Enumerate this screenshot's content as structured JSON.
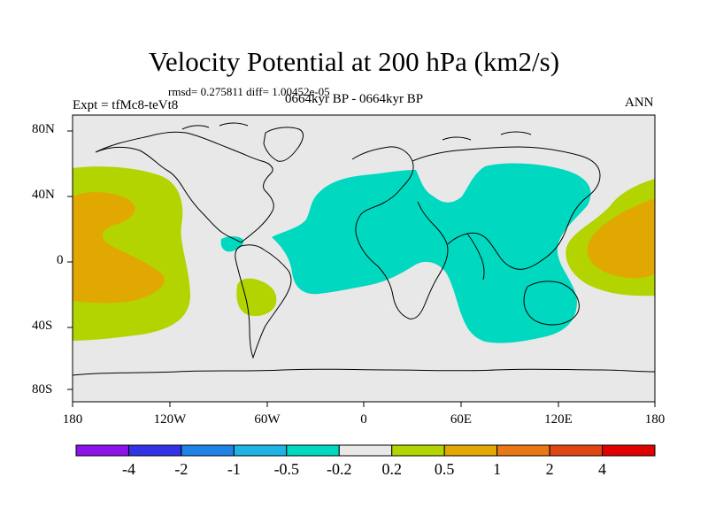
{
  "title": "Velocity Potential at 200 hPa (km2/s)",
  "stats": "rmsd= 0.275811 diff= 1.00452e-05",
  "experiment": "Expt = tfMc8-teVt8",
  "period": "0664kyr BP - 0664kyr BP",
  "season": "ANN",
  "axes": {
    "y_ticks": [
      "80N",
      "40N",
      "0",
      "40S",
      "80S"
    ],
    "x_ticks": [
      "180",
      "120W",
      "60W",
      "0",
      "60E",
      "120E",
      "180"
    ]
  },
  "colors": {
    "land_background": "#e8e8e8",
    "coastline": "#000000",
    "contour_neg_small": "#00d8c0",
    "contour_pos_small": "#b4d400",
    "contour_pos_mid": "#e0a800"
  },
  "colorbar": {
    "labels": [
      "-4",
      "-2",
      "-1",
      "-0.5",
      "-0.2",
      "0.2",
      "0.5",
      "1",
      "2",
      "4"
    ],
    "colors": [
      "#8c14ea",
      "#3232e6",
      "#1e82e6",
      "#1eb4e6",
      "#00d8c0",
      "#e8e8e8",
      "#b4d400",
      "#e0a800",
      "#e87814",
      "#e04614",
      "#e00000"
    ]
  }
}
